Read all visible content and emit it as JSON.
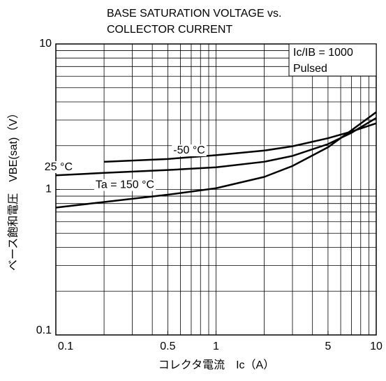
{
  "chart_data": {
    "type": "line",
    "title": [
      "BASE SATURATION VOLTAGE vs.",
      "COLLECTOR CURRENT"
    ],
    "xlabel": "コレクタ電流　Ic（A）",
    "ylabel": "ベース飽和電圧　VBE(sat)（V）",
    "annotations": [
      "Ic/IB = 1000",
      "Pulsed"
    ],
    "log_x": true,
    "log_y": true,
    "grid": true,
    "xlim": [
      0.1,
      10
    ],
    "ylim": [
      0.1,
      10
    ],
    "xticks": [
      0.1,
      0.5,
      1,
      5,
      10
    ],
    "yticks": [
      0.1,
      1,
      10
    ],
    "xgrid": [
      0.2,
      0.3,
      0.4,
      0.5,
      0.6,
      0.7,
      0.8,
      0.9,
      1,
      2,
      3,
      4,
      5,
      6,
      7,
      8,
      9
    ],
    "ygrid": [
      0.2,
      0.3,
      0.4,
      0.5,
      0.6,
      0.7,
      0.8,
      0.9,
      1,
      2,
      3,
      4,
      5,
      6,
      7,
      8,
      9
    ],
    "series": [
      {
        "name": "-50 °C",
        "color": "#000000",
        "x": [
          0.2,
          0.5,
          1,
          2,
          3,
          5,
          7,
          10
        ],
        "values": [
          1.55,
          1.62,
          1.72,
          1.85,
          1.98,
          2.25,
          2.5,
          2.85
        ]
      },
      {
        "name": "25 °C",
        "color": "#000000",
        "x": [
          0.1,
          0.2,
          0.5,
          1,
          2,
          3,
          5,
          7,
          10
        ],
        "values": [
          1.25,
          1.3,
          1.36,
          1.42,
          1.55,
          1.7,
          2.05,
          2.45,
          3.1
        ]
      },
      {
        "name": "Ta = 150 °C",
        "color": "#000000",
        "x": [
          0.1,
          0.2,
          0.5,
          1,
          2,
          3,
          5,
          7,
          10
        ],
        "values": [
          0.75,
          0.82,
          0.92,
          1.02,
          1.22,
          1.45,
          1.95,
          2.55,
          3.4
        ]
      }
    ]
  }
}
